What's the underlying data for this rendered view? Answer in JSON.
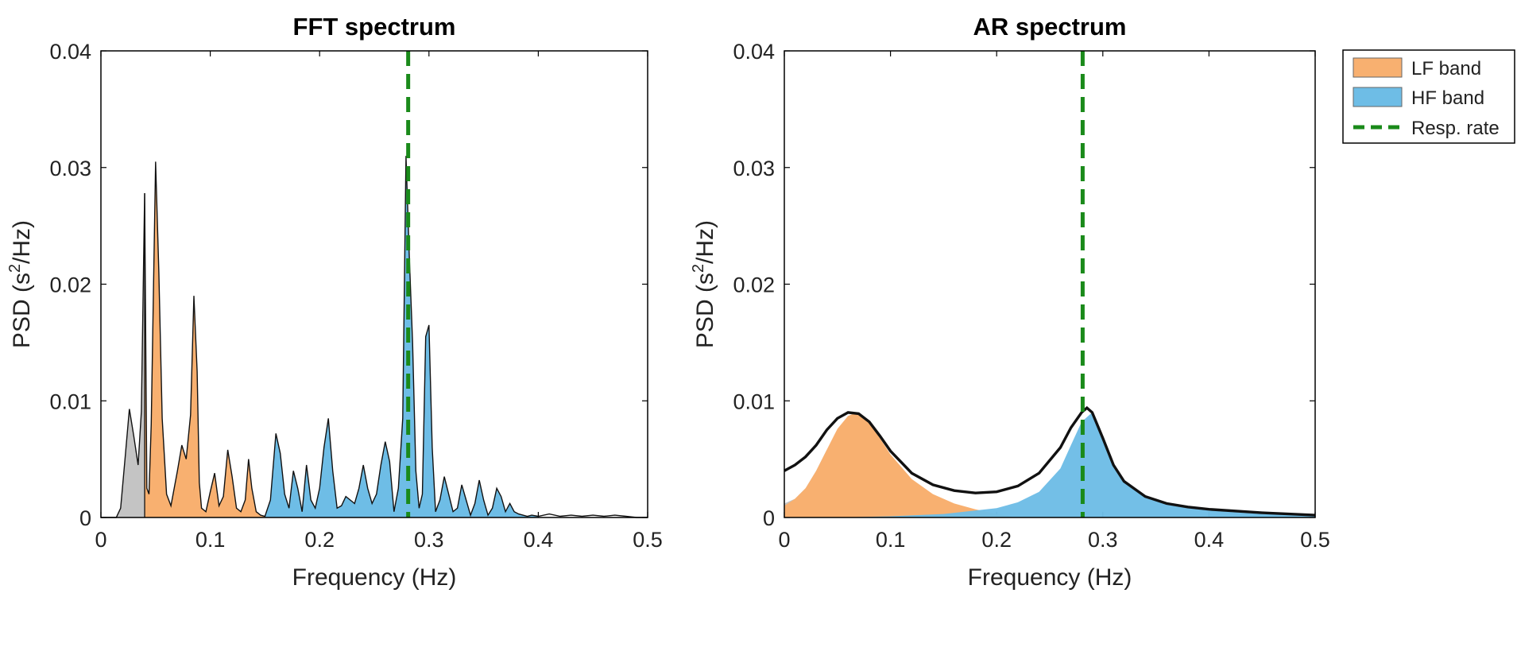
{
  "legend": {
    "entries": [
      {
        "label": "LF band",
        "color": "#f8b070",
        "kind": "patch"
      },
      {
        "label": "HF band",
        "color": "#6ebde6",
        "kind": "patch"
      },
      {
        "label": "Resp. rate",
        "color": "#1a8a1a",
        "kind": "dashed-line"
      }
    ],
    "placement": "outside-right-top"
  },
  "colors": {
    "lf": "#f8b070",
    "hf": "#6ebde6",
    "vlf": "#c4c4c4",
    "resp": "#1a8a1a",
    "curve": "#111111"
  },
  "chart_data": [
    {
      "type": "area",
      "title": "FFT spectrum",
      "xlabel": "Frequency (Hz)",
      "ylabel_parts": [
        "PSD (s",
        "2",
        "/Hz)"
      ],
      "xlim": [
        0,
        0.5
      ],
      "ylim": [
        0,
        0.04
      ],
      "xticks": [
        0,
        0.1,
        0.2,
        0.3,
        0.4,
        0.5
      ],
      "xtick_labels": [
        "0",
        "0.1",
        "0.2",
        "0.3",
        "0.4",
        "0.5"
      ],
      "yticks": [
        0,
        0.01,
        0.02,
        0.03,
        0.04
      ],
      "ytick_labels": [
        "0",
        "0.01",
        "0.02",
        "0.03",
        "0.04"
      ],
      "grid": false,
      "bands": {
        "vlf": [
          0,
          0.04
        ],
        "lf": [
          0.04,
          0.15
        ],
        "hf": [
          0.15,
          0.4
        ]
      },
      "resp_rate": 0.281,
      "x": [
        0,
        0.014,
        0.018,
        0.022,
        0.026,
        0.03,
        0.034,
        0.037,
        0.04,
        0.042,
        0.044,
        0.046,
        0.05,
        0.053,
        0.056,
        0.06,
        0.064,
        0.07,
        0.074,
        0.078,
        0.082,
        0.085,
        0.088,
        0.09,
        0.092,
        0.096,
        0.1,
        0.104,
        0.108,
        0.112,
        0.116,
        0.12,
        0.124,
        0.128,
        0.132,
        0.135,
        0.138,
        0.142,
        0.146,
        0.15,
        0.155,
        0.16,
        0.164,
        0.168,
        0.172,
        0.176,
        0.18,
        0.184,
        0.188,
        0.192,
        0.196,
        0.2,
        0.204,
        0.208,
        0.212,
        0.216,
        0.22,
        0.224,
        0.228,
        0.232,
        0.236,
        0.24,
        0.244,
        0.248,
        0.252,
        0.256,
        0.26,
        0.264,
        0.268,
        0.272,
        0.276,
        0.279,
        0.282,
        0.285,
        0.288,
        0.291,
        0.294,
        0.297,
        0.3,
        0.303,
        0.306,
        0.31,
        0.314,
        0.318,
        0.322,
        0.326,
        0.33,
        0.334,
        0.338,
        0.342,
        0.346,
        0.35,
        0.354,
        0.358,
        0.362,
        0.366,
        0.37,
        0.374,
        0.378,
        0.382,
        0.386,
        0.39,
        0.394,
        0.4,
        0.41,
        0.42,
        0.43,
        0.44,
        0.45,
        0.46,
        0.47,
        0.48,
        0.49,
        0.5
      ],
      "values": [
        0,
        0,
        0.0008,
        0.005,
        0.0093,
        0.007,
        0.0045,
        0.0091,
        0.0278,
        0.0025,
        0.002,
        0.008,
        0.0305,
        0.021,
        0.0085,
        0.002,
        0.001,
        0.004,
        0.0062,
        0.005,
        0.0088,
        0.019,
        0.0125,
        0.003,
        0.0008,
        0.0005,
        0.0022,
        0.0038,
        0.001,
        0.0018,
        0.0058,
        0.0035,
        0.0008,
        0.0005,
        0.0015,
        0.005,
        0.0025,
        0.0005,
        0.0002,
        0.0001,
        0.0015,
        0.0072,
        0.0055,
        0.002,
        0.0008,
        0.004,
        0.0025,
        0.0005,
        0.0045,
        0.0015,
        0.0008,
        0.0025,
        0.006,
        0.0085,
        0.004,
        0.0008,
        0.001,
        0.0018,
        0.0015,
        0.0012,
        0.0025,
        0.0045,
        0.0025,
        0.0012,
        0.002,
        0.0045,
        0.0065,
        0.0048,
        0.0005,
        0.0025,
        0.0085,
        0.031,
        0.0225,
        0.015,
        0.004,
        0.0008,
        0.002,
        0.0155,
        0.0165,
        0.006,
        0.0005,
        0.0015,
        0.0035,
        0.002,
        0.0005,
        0.0008,
        0.0028,
        0.0015,
        0.0002,
        0.0012,
        0.0032,
        0.0015,
        0.0002,
        0.0008,
        0.0025,
        0.0018,
        0.0005,
        0.0012,
        0.0005,
        0.0003,
        0.0002,
        0.0001,
        0.0002,
        0.0001,
        0.0003,
        0.0001,
        0.0002,
        0.0001,
        0.0002,
        0.0001,
        0.0002,
        0.0001,
        0,
        0
      ]
    },
    {
      "type": "area",
      "title": "AR spectrum",
      "xlabel": "Frequency (Hz)",
      "ylabel_parts": [
        "PSD (s",
        "2",
        "/Hz)"
      ],
      "xlim": [
        0,
        0.5
      ],
      "ylim": [
        0,
        0.04
      ],
      "xticks": [
        0,
        0.1,
        0.2,
        0.3,
        0.4,
        0.5
      ],
      "xtick_labels": [
        "0",
        "0.1",
        "0.2",
        "0.3",
        "0.4",
        "0.5"
      ],
      "yticks": [
        0,
        0.01,
        0.02,
        0.03,
        0.04
      ],
      "ytick_labels": [
        "0",
        "0.01",
        "0.02",
        "0.03",
        "0.04"
      ],
      "grid": false,
      "resp_rate": 0.281,
      "series": [
        {
          "name": "total",
          "x": [
            0,
            0.01,
            0.02,
            0.03,
            0.04,
            0.05,
            0.06,
            0.07,
            0.08,
            0.09,
            0.1,
            0.12,
            0.14,
            0.16,
            0.18,
            0.2,
            0.22,
            0.24,
            0.26,
            0.27,
            0.28,
            0.285,
            0.29,
            0.3,
            0.31,
            0.32,
            0.34,
            0.36,
            0.38,
            0.4,
            0.45,
            0.5
          ],
          "values": [
            0.004,
            0.0045,
            0.0052,
            0.0062,
            0.0075,
            0.0085,
            0.009,
            0.0089,
            0.0082,
            0.007,
            0.0057,
            0.0038,
            0.0028,
            0.0023,
            0.0021,
            0.0022,
            0.0027,
            0.0038,
            0.006,
            0.0077,
            0.009,
            0.0094,
            0.009,
            0.0068,
            0.0045,
            0.0031,
            0.0018,
            0.0012,
            0.0009,
            0.0007,
            0.0004,
            0.0002
          ]
        },
        {
          "name": "vlf",
          "x": [
            0,
            0.01,
            0.02,
            0.03,
            0.04
          ],
          "values": [
            0.0012,
            0.0016,
            0.0025,
            0.004,
            0.0058
          ]
        },
        {
          "name": "lf",
          "x": [
            0,
            0.01,
            0.02,
            0.03,
            0.04,
            0.05,
            0.06,
            0.068,
            0.08,
            0.09,
            0.1,
            0.12,
            0.14,
            0.16,
            0.18,
            0.2,
            0.22
          ],
          "values": [
            0.001,
            0.0016,
            0.0025,
            0.004,
            0.0058,
            0.0076,
            0.0087,
            0.009,
            0.0081,
            0.0068,
            0.0054,
            0.0033,
            0.002,
            0.0012,
            0.0007,
            0.0003,
            0
          ]
        },
        {
          "name": "hf",
          "x": [
            0.05,
            0.1,
            0.15,
            0.2,
            0.22,
            0.24,
            0.26,
            0.27,
            0.28,
            0.29,
            0.3,
            0.31,
            0.32,
            0.34,
            0.36,
            0.38,
            0.4,
            0.45,
            0.5
          ],
          "values": [
            0,
            0.0001,
            0.0003,
            0.0008,
            0.0013,
            0.0022,
            0.0042,
            0.0062,
            0.0082,
            0.009,
            0.0067,
            0.0043,
            0.003,
            0.0017,
            0.0011,
            0.0008,
            0.0006,
            0.0003,
            0.0002
          ]
        }
      ]
    }
  ]
}
